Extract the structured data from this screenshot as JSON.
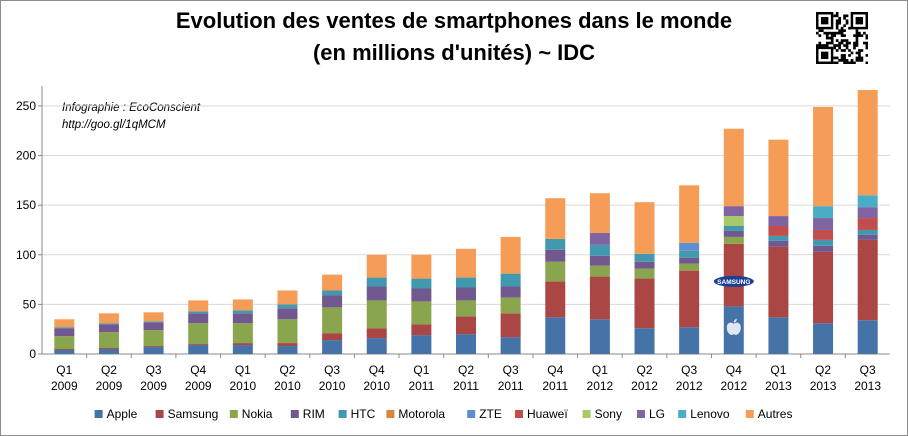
{
  "title_line1": "Evolution des ventes de smartphones dans le monde",
  "title_line2": "(en millions d'unités) ~ IDC",
  "credit_line1": "Infographie : EcoConscient",
  "credit_line2": "http://goo.gl/1qMCM",
  "logos": {
    "samsung": "SAMSUNG"
  },
  "icons": {
    "apple": "apple-logo-icon",
    "qr": "qr-code-icon"
  },
  "chart_data": {
    "type": "bar",
    "stacked": true,
    "categories": [
      "Q1 2009",
      "Q2 2009",
      "Q3 2009",
      "Q4 2009",
      "Q1 2010",
      "Q2 2010",
      "Q3 2010",
      "Q4 2010",
      "Q1 2011",
      "Q2 2011",
      "Q3 2011",
      "Q4 2011",
      "Q1 2012",
      "Q2 2012",
      "Q3 2012",
      "Q4 2012",
      "Q1 2013",
      "Q2 2013",
      "Q3 2013"
    ],
    "category_labels": [
      {
        "q": "Q1",
        "y": "2009"
      },
      {
        "q": "Q2",
        "y": "2009"
      },
      {
        "q": "Q3",
        "y": "2009"
      },
      {
        "q": "Q4",
        "y": "2009"
      },
      {
        "q": "Q1",
        "y": "2010"
      },
      {
        "q": "Q2",
        "y": "2010"
      },
      {
        "q": "Q3",
        "y": "2010"
      },
      {
        "q": "Q4",
        "y": "2010"
      },
      {
        "q": "Q1",
        "y": "2011"
      },
      {
        "q": "Q2",
        "y": "2011"
      },
      {
        "q": "Q3",
        "y": "2011"
      },
      {
        "q": "Q4",
        "y": "2011"
      },
      {
        "q": "Q1",
        "y": "2012"
      },
      {
        "q": "Q2",
        "y": "2012"
      },
      {
        "q": "Q3",
        "y": "2012"
      },
      {
        "q": "Q4",
        "y": "2012"
      },
      {
        "q": "Q1",
        "y": "2013"
      },
      {
        "q": "Q2",
        "y": "2013"
      },
      {
        "q": "Q3",
        "y": "2013"
      }
    ],
    "ylim": [
      0,
      260
    ],
    "yticks": [
      0,
      50,
      100,
      150,
      200,
      250
    ],
    "grid": true,
    "legend_position": "bottom",
    "series": [
      {
        "name": "Apple",
        "color": "#4572a7",
        "values": [
          4,
          5,
          7,
          9,
          9,
          8,
          14,
          16,
          19,
          20,
          17,
          37,
          35,
          26,
          27,
          48,
          37,
          31,
          34
        ]
      },
      {
        "name": "Samsung",
        "color": "#aa4643",
        "values": [
          1,
          1,
          1,
          1,
          2,
          3,
          7,
          10,
          11,
          18,
          24,
          36,
          43,
          50,
          57,
          63,
          71,
          72,
          81
        ]
      },
      {
        "name": "Nokia",
        "color": "#89a54e",
        "values": [
          13,
          16,
          16,
          21,
          20,
          24,
          26,
          28,
          23,
          16,
          16,
          20,
          11,
          10,
          7,
          7,
          0,
          0,
          0
        ]
      },
      {
        "name": "RIM",
        "color": "#71588f",
        "values": [
          8,
          8,
          8,
          10,
          10,
          11,
          12,
          14,
          13,
          13,
          11,
          12,
          10,
          7,
          6,
          6,
          6,
          6,
          5
        ]
      },
      {
        "name": "HTC",
        "color": "#4198af",
        "values": [
          1,
          1,
          1,
          2,
          3,
          4,
          5,
          9,
          10,
          10,
          13,
          11,
          11,
          8,
          7,
          5,
          5,
          6,
          5
        ]
      },
      {
        "name": "Motorola",
        "color": "#db843d",
        "values": [
          0,
          0,
          0,
          0,
          0,
          0,
          0,
          0,
          0,
          0,
          0,
          0,
          0,
          0,
          0,
          0,
          0,
          0,
          0
        ]
      },
      {
        "name": "ZTE",
        "color": "#5b8fd1",
        "values": [
          0,
          0,
          0,
          0,
          0,
          0,
          0,
          0,
          0,
          0,
          0,
          0,
          0,
          0,
          8,
          0,
          0,
          0,
          0
        ]
      },
      {
        "name": "Huaweï",
        "color": "#c24d4d",
        "values": [
          0,
          0,
          0,
          0,
          0,
          0,
          0,
          0,
          0,
          0,
          0,
          0,
          0,
          0,
          0,
          0,
          10,
          10,
          12
        ]
      },
      {
        "name": "Sony",
        "color": "#a6c96a",
        "values": [
          0,
          0,
          0,
          0,
          0,
          0,
          0,
          0,
          0,
          0,
          0,
          0,
          0,
          0,
          0,
          10,
          0,
          0,
          0
        ]
      },
      {
        "name": "LG",
        "color": "#8064a2",
        "values": [
          0,
          0,
          0,
          0,
          0,
          0,
          0,
          0,
          0,
          0,
          0,
          0,
          12,
          0,
          0,
          10,
          10,
          12,
          11
        ]
      },
      {
        "name": "Lenovo",
        "color": "#4bacc6",
        "values": [
          0,
          0,
          0,
          0,
          0,
          0,
          0,
          0,
          0,
          0,
          0,
          0,
          0,
          0,
          0,
          0,
          0,
          12,
          12
        ]
      },
      {
        "name": "Autres",
        "color": "#f59d56",
        "values": [
          8,
          10,
          9,
          11,
          11,
          14,
          16,
          23,
          24,
          29,
          37,
          41,
          40,
          52,
          58,
          78,
          77,
          100,
          106
        ]
      }
    ]
  }
}
